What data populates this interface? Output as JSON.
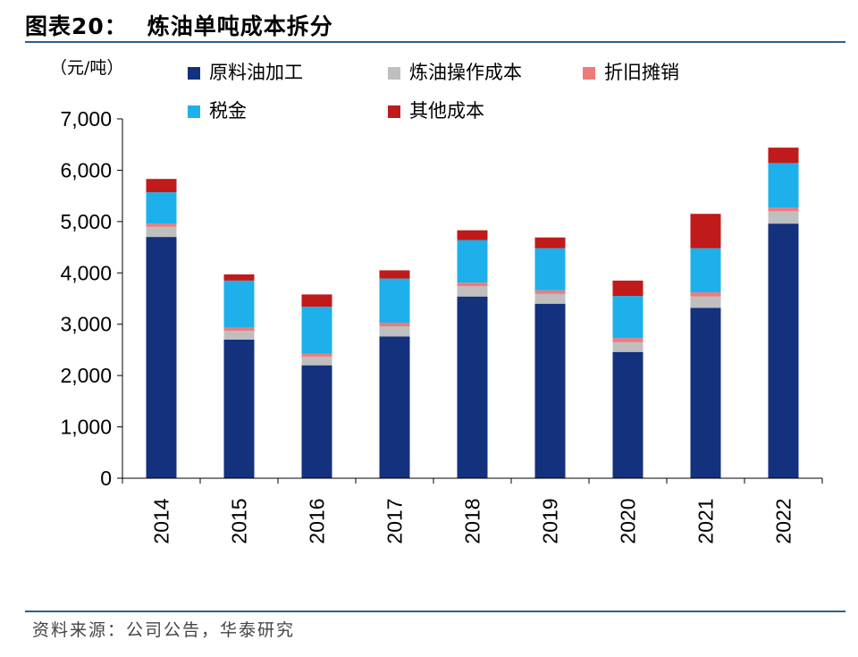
{
  "header": {
    "fig_label": "图表20：",
    "title": "炼油单吨成本拆分"
  },
  "source": "资料来源：公司公告，华泰研究",
  "colors": {
    "rule": "#2e5f8a",
    "series": [
      "#14317e",
      "#bfbfbf",
      "#f07a7a",
      "#1eb0ea",
      "#c01a1a"
    ]
  },
  "chart_data": {
    "type": "bar",
    "stacked": true,
    "title": "炼油单吨成本拆分",
    "ylabel": "（元/吨）",
    "ylim": [
      0,
      7000
    ],
    "yticks": [
      0,
      1000,
      2000,
      3000,
      4000,
      5000,
      6000,
      7000
    ],
    "ytick_labels": [
      "0",
      "1,000",
      "2,000",
      "3,000",
      "4,000",
      "5,000",
      "6,000",
      "7,000"
    ],
    "categories": [
      "2014",
      "2015",
      "2016",
      "2017",
      "2018",
      "2019",
      "2020",
      "2021",
      "2022"
    ],
    "legend_position": "top",
    "grid": false,
    "series": [
      {
        "name": "原料油加工",
        "values": [
          4700,
          2700,
          2200,
          2760,
          3540,
          3400,
          2460,
          3320,
          4960
        ]
      },
      {
        "name": "炼油操作成本",
        "values": [
          200,
          170,
          170,
          200,
          200,
          190,
          190,
          220,
          240
        ]
      },
      {
        "name": "折旧摊销",
        "values": [
          60,
          60,
          60,
          70,
          70,
          70,
          80,
          80,
          70
        ]
      },
      {
        "name": "税金",
        "values": [
          610,
          920,
          910,
          860,
          830,
          820,
          820,
          860,
          870
        ]
      },
      {
        "name": "其他成本",
        "values": [
          260,
          120,
          240,
          160,
          190,
          210,
          300,
          670,
          300
        ]
      }
    ]
  }
}
